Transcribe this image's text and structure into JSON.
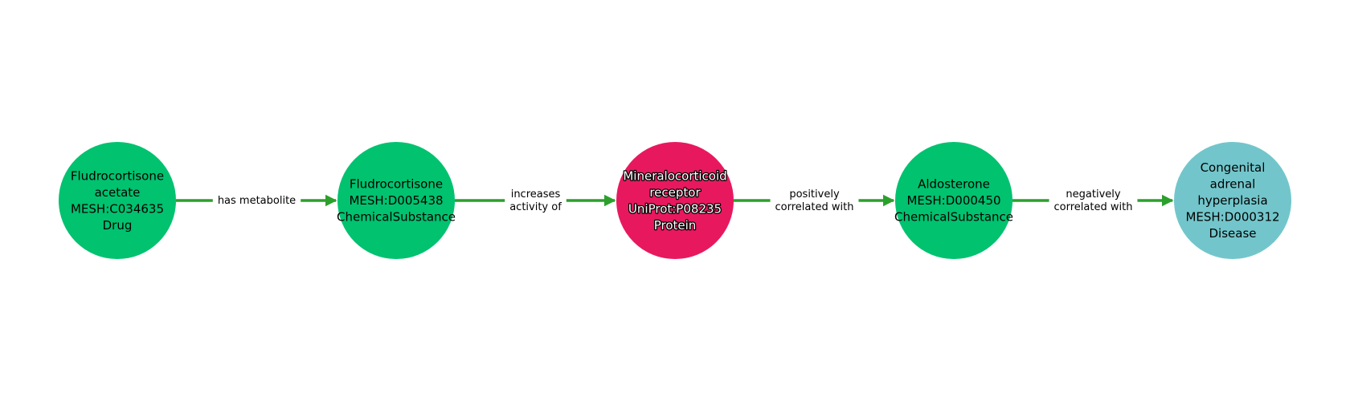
{
  "colors": {
    "edge": "#2ca02c",
    "drug": "#00c26f",
    "chemical": "#00c26f",
    "protein": "#e8185f",
    "disease": "#72c6cb"
  },
  "nodes": [
    {
      "id": "n0",
      "lines": [
        "Fludrocortisone",
        "acetate",
        "MESH:C034635",
        "Drug"
      ],
      "color": "#00c26f",
      "text_style": "dark"
    },
    {
      "id": "n1",
      "lines": [
        "Fludrocortisone",
        "MESH:D005438",
        "ChemicalSubstance"
      ],
      "color": "#00c26f",
      "text_style": "dark"
    },
    {
      "id": "n2",
      "lines": [
        "Mineralocorticoid",
        "receptor",
        "UniProt:P08235",
        "Protein"
      ],
      "color": "#e8185f",
      "text_style": "light"
    },
    {
      "id": "n3",
      "lines": [
        "Aldosterone",
        "MESH:D000450",
        "ChemicalSubstance"
      ],
      "color": "#00c26f",
      "text_style": "dark"
    },
    {
      "id": "n4",
      "lines": [
        "Congenital",
        "adrenal",
        "hyperplasia",
        "MESH:D000312",
        "Disease"
      ],
      "color": "#72c6cb",
      "text_style": "dark"
    }
  ],
  "edges": [
    {
      "from": "n0",
      "to": "n1",
      "label_lines": [
        "has metabolite"
      ]
    },
    {
      "from": "n1",
      "to": "n2",
      "label_lines": [
        "increases",
        "activity of"
      ]
    },
    {
      "from": "n2",
      "to": "n3",
      "label_lines": [
        "positively",
        "correlated with"
      ]
    },
    {
      "from": "n3",
      "to": "n4",
      "label_lines": [
        "negatively",
        "correlated with"
      ]
    }
  ]
}
